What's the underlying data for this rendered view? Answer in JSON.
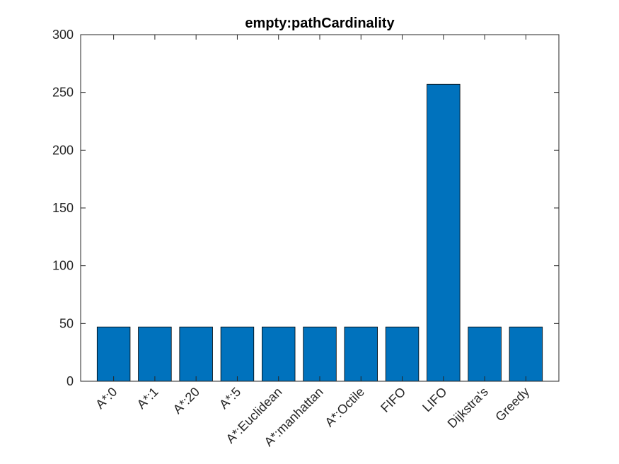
{
  "chart_data": {
    "type": "bar",
    "title": "empty:pathCardinality",
    "xlabel": "",
    "ylabel": "",
    "categories": [
      "A*:0",
      "A*:1",
      "A*:20",
      "A*:5",
      "A*:Euclidean",
      "A*:manhattan",
      "A*:Octile",
      "FIFO",
      "LIFO",
      "Dijkstra's",
      "Greedy"
    ],
    "values": [
      47,
      47,
      47,
      47,
      47,
      47,
      47,
      47,
      257,
      47,
      47
    ],
    "ylim": [
      0,
      300
    ],
    "yticks": [
      0,
      50,
      100,
      150,
      200,
      250,
      300
    ],
    "ytick_labels": [
      "0",
      "50",
      "100",
      "150",
      "200",
      "250",
      "300"
    ],
    "grid": false,
    "box": true,
    "legend": "none",
    "xtick_rotation_deg": 45,
    "colors": {
      "bar_fill": "#0072BD",
      "bar_edge": "#000000",
      "axis": "#262626",
      "background": "#ffffff"
    }
  }
}
